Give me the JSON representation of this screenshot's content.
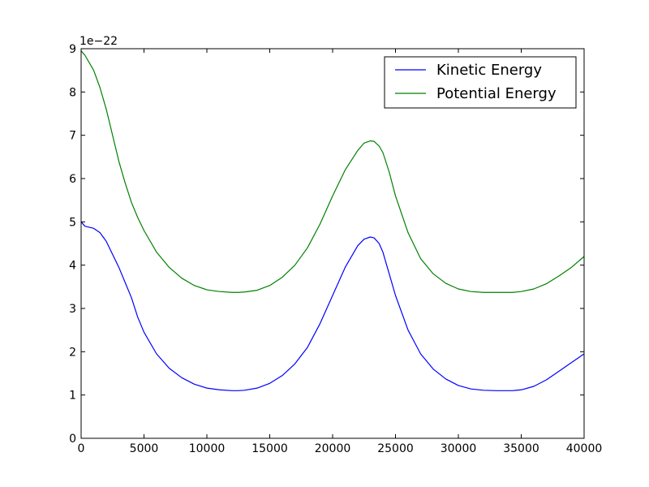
{
  "chart_data": {
    "type": "line",
    "title": "",
    "xlabel": "",
    "ylabel": "",
    "offset_text": "1e−22",
    "xlim": [
      0,
      40000
    ],
    "ylim": [
      0,
      9
    ],
    "x_ticks": [
      0,
      5000,
      10000,
      15000,
      20000,
      25000,
      30000,
      35000,
      40000
    ],
    "y_ticks": [
      0,
      1,
      2,
      3,
      4,
      5,
      6,
      7,
      8,
      9
    ],
    "grid": false,
    "legend_position": "top-right",
    "series": [
      {
        "name": "Kinetic Energy",
        "color": "#0000ff",
        "x": [
          0,
          300,
          1000,
          1500,
          2000,
          2500,
          3000,
          3500,
          4000,
          4500,
          5000,
          6000,
          7000,
          8000,
          9000,
          10000,
          11000,
          12000,
          12500,
          13000,
          14000,
          15000,
          16000,
          17000,
          18000,
          19000,
          20000,
          21000,
          22000,
          22500,
          23000,
          23300,
          23700,
          24000,
          24500,
          25000,
          26000,
          27000,
          28000,
          29000,
          30000,
          31000,
          32000,
          33000,
          34000,
          34300,
          35000,
          36000,
          37000,
          38000,
          39000,
          40000
        ],
        "y": [
          5.0,
          4.9,
          4.85,
          4.75,
          4.55,
          4.25,
          3.95,
          3.6,
          3.25,
          2.8,
          2.45,
          1.95,
          1.62,
          1.4,
          1.25,
          1.16,
          1.12,
          1.1,
          1.1,
          1.11,
          1.16,
          1.27,
          1.45,
          1.72,
          2.1,
          2.65,
          3.3,
          3.95,
          4.45,
          4.6,
          4.65,
          4.63,
          4.5,
          4.3,
          3.8,
          3.3,
          2.5,
          1.95,
          1.6,
          1.37,
          1.22,
          1.14,
          1.11,
          1.1,
          1.1,
          1.1,
          1.12,
          1.2,
          1.35,
          1.55,
          1.75,
          1.95
        ]
      },
      {
        "name": "Potential Energy",
        "color": "#008000",
        "x": [
          0,
          300,
          1000,
          1500,
          2000,
          2500,
          3000,
          3500,
          4000,
          4500,
          5000,
          6000,
          7000,
          8000,
          9000,
          10000,
          11000,
          12000,
          12500,
          13000,
          14000,
          15000,
          16000,
          17000,
          18000,
          19000,
          20000,
          21000,
          22000,
          22500,
          23000,
          23300,
          23700,
          24000,
          24500,
          25000,
          26000,
          27000,
          28000,
          29000,
          30000,
          31000,
          32000,
          33000,
          34000,
          34300,
          35000,
          36000,
          37000,
          38000,
          39000,
          40000
        ],
        "y": [
          8.95,
          8.85,
          8.5,
          8.1,
          7.6,
          7.0,
          6.4,
          5.9,
          5.45,
          5.1,
          4.8,
          4.3,
          3.95,
          3.7,
          3.53,
          3.43,
          3.39,
          3.37,
          3.37,
          3.38,
          3.42,
          3.53,
          3.72,
          4.0,
          4.4,
          4.95,
          5.6,
          6.2,
          6.65,
          6.82,
          6.87,
          6.86,
          6.75,
          6.6,
          6.15,
          5.6,
          4.75,
          4.15,
          3.8,
          3.58,
          3.45,
          3.39,
          3.37,
          3.37,
          3.37,
          3.37,
          3.39,
          3.45,
          3.57,
          3.75,
          3.95,
          4.2
        ]
      }
    ]
  }
}
